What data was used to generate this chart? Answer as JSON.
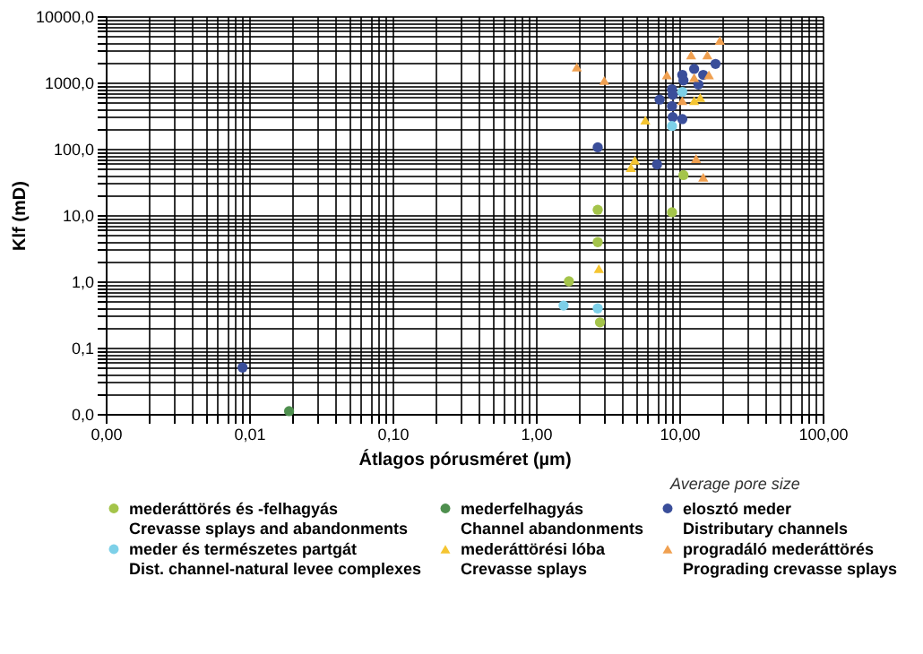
{
  "chart_data": {
    "type": "scatter",
    "xlabel": "Átlagos pórusméret (µm)",
    "ylabel": "Klf (mD)",
    "annotations": [
      "Average pore size"
    ],
    "log": "xy",
    "grid": true,
    "legend": "bottom",
    "xlim": [
      0.001,
      100
    ],
    "ylim": [
      0.01,
      10000
    ],
    "xticks": [
      {
        "value": 0.001,
        "label": "0,00"
      },
      {
        "value": 0.002,
        "label": null
      },
      {
        "value": 0.003,
        "label": null
      },
      {
        "value": 0.004,
        "label": null
      },
      {
        "value": 0.005,
        "label": null
      },
      {
        "value": 0.006,
        "label": null
      },
      {
        "value": 0.007,
        "label": null
      },
      {
        "value": 0.008,
        "label": null
      },
      {
        "value": 0.009,
        "label": null
      },
      {
        "value": 0.01,
        "label": "0,01"
      },
      {
        "value": 0.02,
        "label": null
      },
      {
        "value": 0.03,
        "label": null
      },
      {
        "value": 0.04,
        "label": null
      },
      {
        "value": 0.05,
        "label": null
      },
      {
        "value": 0.06,
        "label": null
      },
      {
        "value": 0.07,
        "label": null
      },
      {
        "value": 0.08,
        "label": null
      },
      {
        "value": 0.09,
        "label": null
      },
      {
        "value": 0.1,
        "label": "0,10"
      },
      {
        "value": 0.2,
        "label": null
      },
      {
        "value": 0.3,
        "label": null
      },
      {
        "value": 0.4,
        "label": null
      },
      {
        "value": 0.5,
        "label": null
      },
      {
        "value": 0.6,
        "label": null
      },
      {
        "value": 0.7,
        "label": null
      },
      {
        "value": 0.8,
        "label": null
      },
      {
        "value": 0.9,
        "label": null
      },
      {
        "value": 1,
        "label": "1,00"
      },
      {
        "value": 2,
        "label": null
      },
      {
        "value": 3,
        "label": null
      },
      {
        "value": 4,
        "label": null
      },
      {
        "value": 5,
        "label": null
      },
      {
        "value": 6,
        "label": null
      },
      {
        "value": 7,
        "label": null
      },
      {
        "value": 8,
        "label": null
      },
      {
        "value": 9,
        "label": null
      },
      {
        "value": 10,
        "label": "10,00"
      },
      {
        "value": 20,
        "label": null
      },
      {
        "value": 30,
        "label": null
      },
      {
        "value": 40,
        "label": null
      },
      {
        "value": 50,
        "label": null
      },
      {
        "value": 60,
        "label": null
      },
      {
        "value": 70,
        "label": null
      },
      {
        "value": 80,
        "label": null
      },
      {
        "value": 90,
        "label": null
      },
      {
        "value": 100,
        "label": "100,00"
      }
    ],
    "yticks": [
      {
        "value": 0.01,
        "label": "0,0"
      },
      {
        "value": 0.02,
        "label": null
      },
      {
        "value": 0.03,
        "label": null
      },
      {
        "value": 0.04,
        "label": null
      },
      {
        "value": 0.05,
        "label": null
      },
      {
        "value": 0.06,
        "label": null
      },
      {
        "value": 0.07,
        "label": null
      },
      {
        "value": 0.08,
        "label": null
      },
      {
        "value": 0.09,
        "label": null
      },
      {
        "value": 0.1,
        "label": "0,1"
      },
      {
        "value": 0.2,
        "label": null
      },
      {
        "value": 0.3,
        "label": null
      },
      {
        "value": 0.4,
        "label": null
      },
      {
        "value": 0.5,
        "label": null
      },
      {
        "value": 0.6,
        "label": null
      },
      {
        "value": 0.7,
        "label": null
      },
      {
        "value": 0.8,
        "label": null
      },
      {
        "value": 0.9,
        "label": null
      },
      {
        "value": 1,
        "label": "1,0"
      },
      {
        "value": 2,
        "label": null
      },
      {
        "value": 3,
        "label": null
      },
      {
        "value": 4,
        "label": null
      },
      {
        "value": 5,
        "label": null
      },
      {
        "value": 6,
        "label": null
      },
      {
        "value": 7,
        "label": null
      },
      {
        "value": 8,
        "label": null
      },
      {
        "value": 9,
        "label": null
      },
      {
        "value": 10,
        "label": "10,0"
      },
      {
        "value": 20,
        "label": null
      },
      {
        "value": 30,
        "label": null
      },
      {
        "value": 40,
        "label": null
      },
      {
        "value": 50,
        "label": null
      },
      {
        "value": 60,
        "label": null
      },
      {
        "value": 70,
        "label": null
      },
      {
        "value": 80,
        "label": null
      },
      {
        "value": 90,
        "label": null
      },
      {
        "value": 100,
        "label": "100,0"
      },
      {
        "value": 200,
        "label": null
      },
      {
        "value": 300,
        "label": null
      },
      {
        "value": 400,
        "label": null
      },
      {
        "value": 500,
        "label": null
      },
      {
        "value": 600,
        "label": null
      },
      {
        "value": 700,
        "label": null
      },
      {
        "value": 800,
        "label": null
      },
      {
        "value": 900,
        "label": null
      },
      {
        "value": 1000,
        "label": "1000,0"
      },
      {
        "value": 2000,
        "label": null
      },
      {
        "value": 3000,
        "label": null
      },
      {
        "value": 4000,
        "label": null
      },
      {
        "value": 5000,
        "label": null
      },
      {
        "value": 6000,
        "label": null
      },
      {
        "value": 7000,
        "label": null
      },
      {
        "value": 8000,
        "label": null
      },
      {
        "value": 9000,
        "label": null
      },
      {
        "value": 10000,
        "label": "10000,0"
      }
    ],
    "series": [
      {
        "name": "mederáttörés és -felhagyás\nCrevasse splays and abandonments",
        "color": "#a4c44a",
        "marker": "circle",
        "x": [
          2.7,
          1.7,
          2.8,
          10.7,
          2.7,
          8.9
        ],
        "values": [
          12,
          1,
          0.24,
          40,
          3.9,
          11
        ]
      },
      {
        "name": "mederfelhagyás\nChannel abandonments",
        "color": "#4e8f4e",
        "marker": "circle",
        "x": [
          0.019
        ],
        "values": [
          0.011
        ]
      },
      {
        "name": "elosztó meder\nDistributary channels",
        "color": "#3a4e9a",
        "marker": "circle",
        "x": [
          0.009,
          2.7,
          7,
          7.3,
          8.9,
          8.9,
          9,
          10.5,
          10.5,
          10.7,
          12.7,
          13.6,
          14.7,
          17.9,
          9
        ],
        "values": [
          0.05,
          105,
          58,
          550,
          790,
          440,
          300,
          280,
          1300,
          1070,
          1600,
          930,
          1300,
          1900,
          650
        ]
      },
      {
        "name": "meder és természetes partgát\nDist. channel-natural levee complexes",
        "color": "#7dd0e8",
        "marker": "circle",
        "x": [
          1.56,
          2.7,
          8.9,
          10.5
        ],
        "values": [
          0.43,
          0.39,
          220,
          720
        ]
      },
      {
        "name": "mederáttörési lóba\nCrevasse splays",
        "color": "#f5c531",
        "marker": "triangle",
        "x": [
          2.75,
          4.6,
          4.9,
          5.8,
          12.7,
          14
        ],
        "values": [
          1.55,
          52,
          67,
          270,
          530,
          590
        ]
      },
      {
        "name": "progradáló mederáttörés\nPrograding crevasse splays",
        "color": "#f0a050",
        "marker": "triangle",
        "x": [
          1.93,
          3,
          8.2,
          10.5,
          12.1,
          12.7,
          15.7,
          16.1,
          19.2,
          13.1,
          14.7
        ],
        "values": [
          1700,
          1070,
          1300,
          530,
          2600,
          1180,
          2600,
          1300,
          4300,
          71,
          37
        ]
      }
    ]
  }
}
